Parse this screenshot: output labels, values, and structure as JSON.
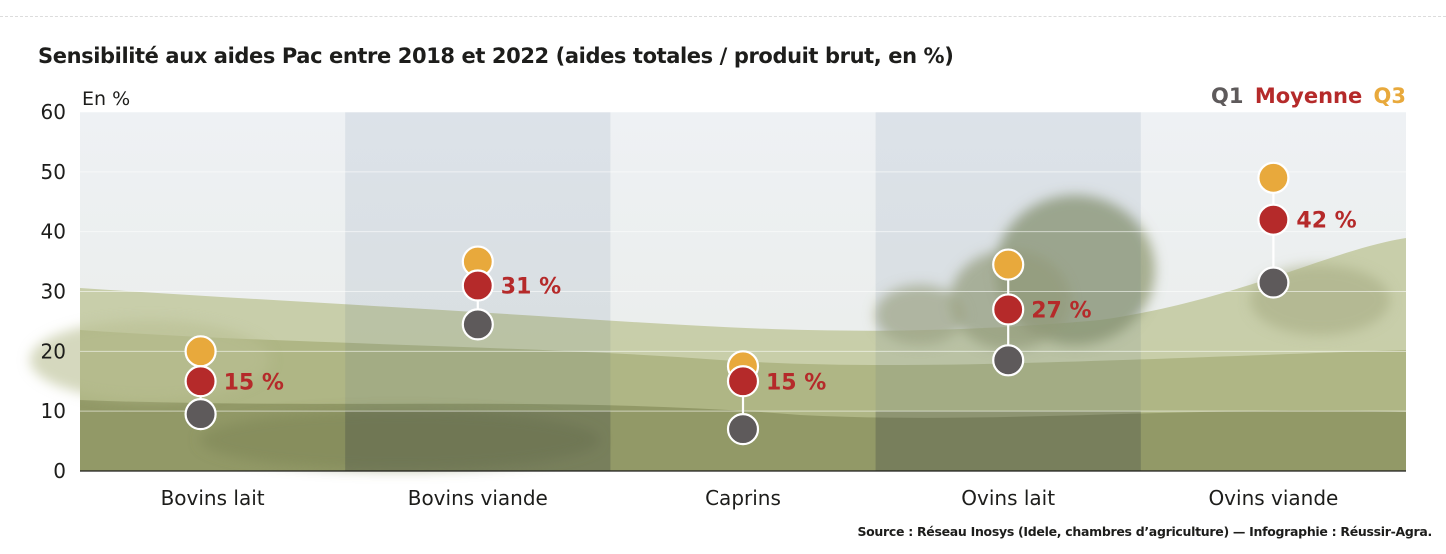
{
  "chart_data": {
    "type": "scatter",
    "title": "Sensibilité aux aides Pac entre 2018 et 2022 (aides totales / produit brut, en %)",
    "ylabel": "En %",
    "ylim": [
      0,
      60
    ],
    "yticks": [
      0,
      10,
      20,
      30,
      40,
      50,
      60
    ],
    "categories": [
      "Bovins lait",
      "Bovins viande",
      "Caprins",
      "Ovins lait",
      "Ovins viande"
    ],
    "series": [
      {
        "name": "Q1",
        "color": "#5e5a5b",
        "values": [
          9.5,
          24.5,
          7,
          18.5,
          31.5
        ]
      },
      {
        "name": "Moyenne",
        "color": "#b52a2a",
        "values": [
          15,
          31,
          15,
          27,
          42
        ],
        "labels": [
          "15 %",
          "31 %",
          "15 %",
          "27 %",
          "42 %"
        ]
      },
      {
        "name": "Q3",
        "color": "#e8a93c",
        "values": [
          20,
          35,
          17.5,
          34.5,
          49
        ]
      }
    ],
    "grid": true,
    "legend_position": "top-right"
  },
  "source": "Source : Réseau Inosys (Idele, chambres d’agriculture) — Infographie : Réussir-Agra."
}
